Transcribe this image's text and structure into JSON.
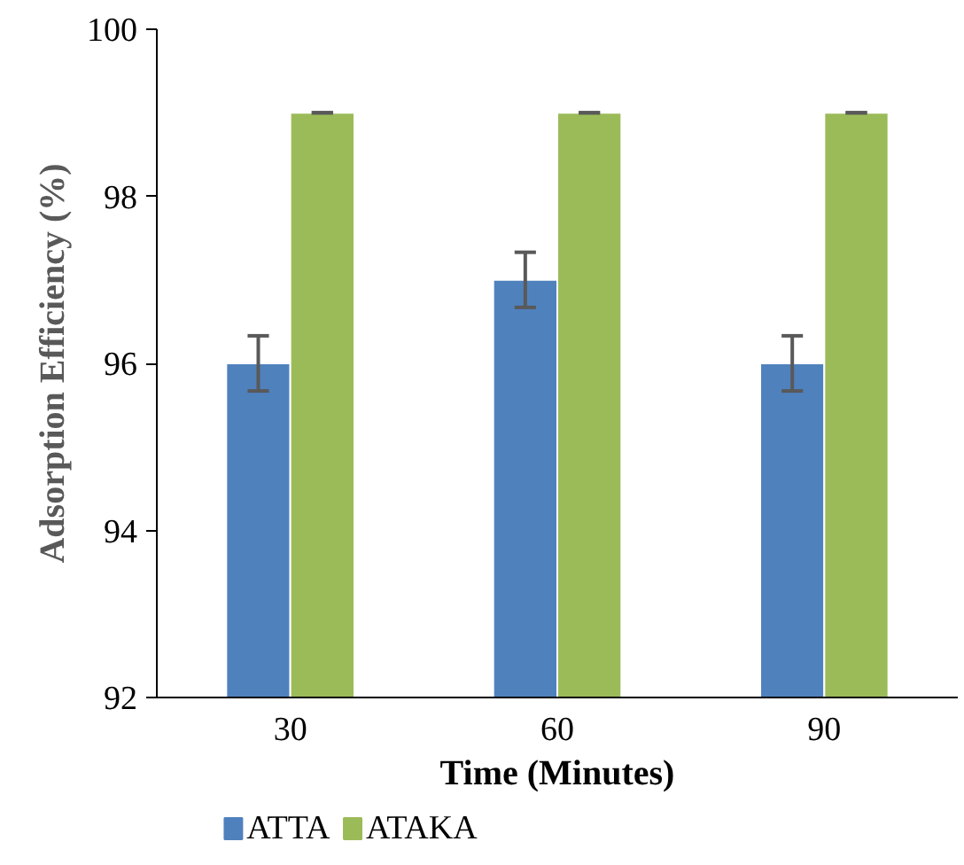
{
  "chart_data": {
    "type": "bar",
    "xlabel": "Time (Minutes)",
    "ylabel": "Adsorption Efficiency (%)",
    "categories": [
      "30",
      "60",
      "90"
    ],
    "series": [
      {
        "name": "ATTA",
        "color": "#4f81bd",
        "values": [
          96,
          97,
          96
        ],
        "errors": [
          0.33,
          0.33,
          0.33
        ]
      },
      {
        "name": "ATAKA",
        "color": "#9bbb59",
        "values": [
          99,
          99,
          99
        ],
        "errors": [
          0,
          0,
          0
        ]
      }
    ],
    "ylim": [
      92,
      100
    ],
    "yticks": [
      92,
      94,
      96,
      98,
      100
    ],
    "grid": false,
    "legend": "bottom left"
  }
}
